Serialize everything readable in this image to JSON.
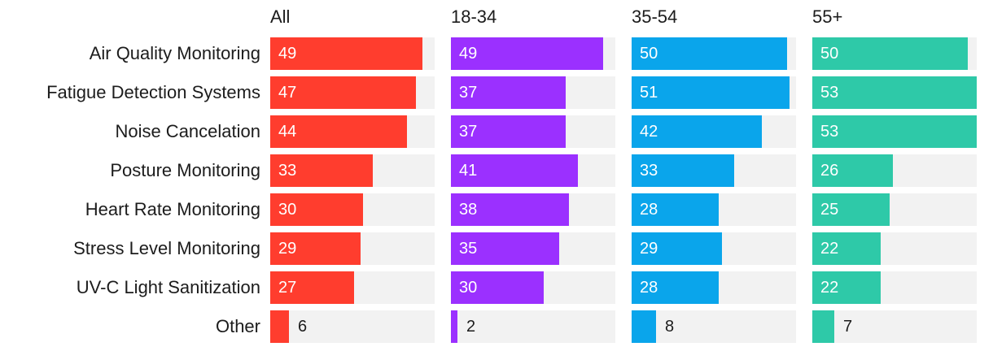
{
  "chart_data": {
    "type": "bar",
    "orientation": "horizontal",
    "layout": "small-multiples",
    "categories": [
      "Air Quality Monitoring",
      "Fatigue Detection Systems",
      "Noise Cancelation",
      "Posture Monitoring",
      "Heart Rate Monitoring",
      "Stress Level Monitoring",
      "UV-C Light Sanitization",
      "Other"
    ],
    "xlim": [
      0,
      53
    ],
    "series": [
      {
        "name": "All",
        "color": "#ff3d2e",
        "values": [
          49,
          47,
          44,
          33,
          30,
          29,
          27,
          6
        ]
      },
      {
        "name": "18-34",
        "color": "#9b30ff",
        "values": [
          49,
          37,
          37,
          41,
          38,
          35,
          30,
          2
        ]
      },
      {
        "name": "35-54",
        "color": "#0aa5eb",
        "values": [
          50,
          51,
          42,
          33,
          28,
          29,
          28,
          8
        ]
      },
      {
        "name": "55+",
        "color": "#2ec9a8",
        "values": [
          50,
          53,
          53,
          26,
          25,
          22,
          22,
          7
        ]
      }
    ],
    "track_color": "#f2f2f2",
    "label_inside_color": "#ffffff",
    "label_outside_color": "#1c1c1c"
  }
}
